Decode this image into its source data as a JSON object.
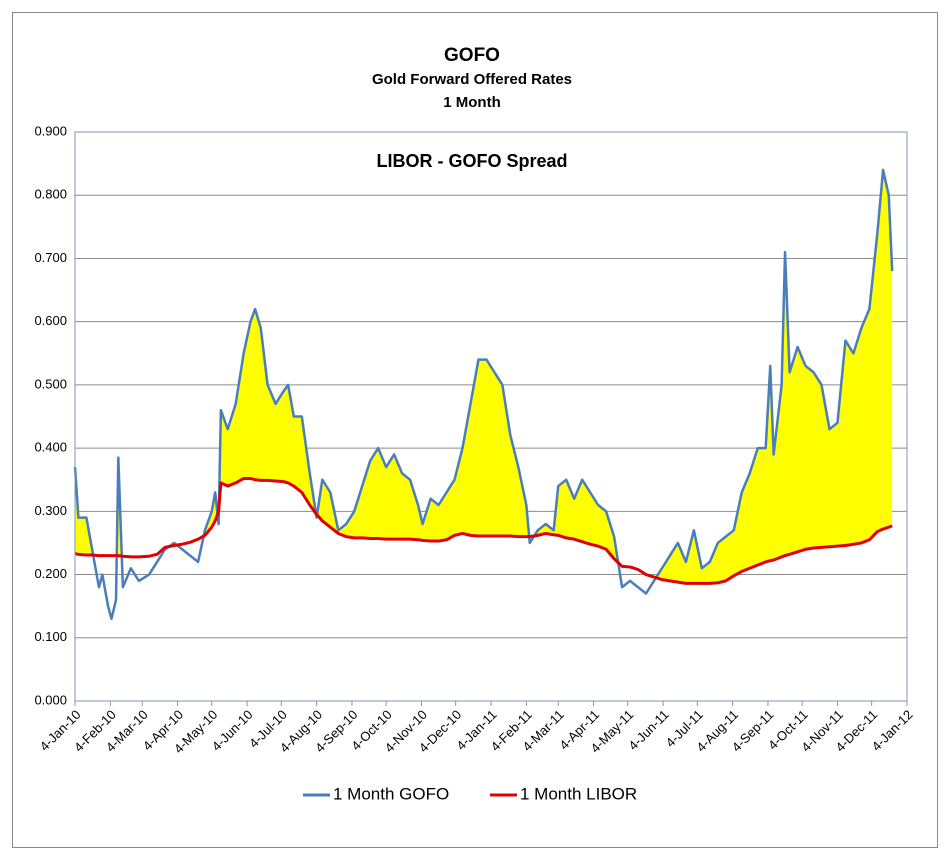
{
  "chart_data": {
    "type": "line",
    "title": "GOFO",
    "subtitle": "Gold Forward Offered Rates",
    "subtitle2": "1 Month",
    "annotation": "LIBOR - GOFO Spread",
    "grid": true,
    "legend": "bottom",
    "fill_between": {
      "color": "#ffff00"
    },
    "x": [
      "2010-01-04",
      "2010-01-07",
      "2010-01-14",
      "2010-01-19",
      "2010-01-25",
      "2010-01-28",
      "2010-02-02",
      "2010-02-05",
      "2010-02-09",
      "2010-02-11",
      "2010-02-15",
      "2010-02-22",
      "2010-03-01",
      "2010-03-10",
      "2010-03-17",
      "2010-03-24",
      "2010-04-01",
      "2010-04-08",
      "2010-04-15",
      "2010-04-22",
      "2010-04-28",
      "2010-05-04",
      "2010-05-07",
      "2010-05-10",
      "2010-05-12",
      "2010-05-18",
      "2010-05-25",
      "2010-06-01",
      "2010-06-07",
      "2010-06-11",
      "2010-06-16",
      "2010-06-22",
      "2010-06-29",
      "2010-07-06",
      "2010-07-10",
      "2010-07-15",
      "2010-07-22",
      "2010-07-29",
      "2010-08-04",
      "2010-08-09",
      "2010-08-16",
      "2010-08-23",
      "2010-08-30",
      "2010-09-06",
      "2010-09-13",
      "2010-09-20",
      "2010-09-27",
      "2010-10-04",
      "2010-10-11",
      "2010-10-18",
      "2010-10-25",
      "2010-11-01",
      "2010-11-05",
      "2010-11-12",
      "2010-11-19",
      "2010-11-26",
      "2010-12-03",
      "2010-12-10",
      "2010-12-17",
      "2010-12-24",
      "2010-12-31",
      "2011-01-07",
      "2011-01-14",
      "2011-01-21",
      "2011-01-28",
      "2011-02-04",
      "2011-02-07",
      "2011-02-14",
      "2011-02-21",
      "2011-02-28",
      "2011-03-04",
      "2011-03-11",
      "2011-03-18",
      "2011-03-25",
      "2011-04-01",
      "2011-04-08",
      "2011-04-15",
      "2011-04-22",
      "2011-04-29",
      "2011-05-06",
      "2011-05-13",
      "2011-05-20",
      "2011-05-27",
      "2011-06-03",
      "2011-06-10",
      "2011-06-17",
      "2011-06-24",
      "2011-07-01",
      "2011-07-08",
      "2011-07-15",
      "2011-07-22",
      "2011-07-29",
      "2011-08-05",
      "2011-08-12",
      "2011-08-19",
      "2011-08-26",
      "2011-09-02",
      "2011-09-06",
      "2011-09-09",
      "2011-09-16",
      "2011-09-19",
      "2011-09-23",
      "2011-09-30",
      "2011-10-07",
      "2011-10-14",
      "2011-10-21",
      "2011-10-28",
      "2011-11-04",
      "2011-11-11",
      "2011-11-18",
      "2011-11-25",
      "2011-12-02",
      "2011-12-09",
      "2011-12-14",
      "2011-12-19",
      "2011-12-22"
    ],
    "series": [
      {
        "name": "1 Month GOFO",
        "color": "#4a7ebb",
        "values": [
          0.37,
          0.29,
          0.29,
          0.24,
          0.18,
          0.2,
          0.15,
          0.13,
          0.16,
          0.385,
          0.18,
          0.21,
          0.19,
          0.2,
          0.22,
          0.24,
          0.25,
          0.24,
          0.23,
          0.22,
          0.27,
          0.3,
          0.33,
          0.28,
          0.46,
          0.43,
          0.47,
          0.55,
          0.6,
          0.62,
          0.59,
          0.5,
          0.47,
          0.49,
          0.5,
          0.45,
          0.45,
          0.36,
          0.29,
          0.35,
          0.33,
          0.27,
          0.28,
          0.3,
          0.34,
          0.38,
          0.4,
          0.37,
          0.39,
          0.36,
          0.35,
          0.31,
          0.28,
          0.32,
          0.31,
          0.33,
          0.35,
          0.4,
          0.47,
          0.54,
          0.54,
          0.52,
          0.5,
          0.42,
          0.37,
          0.31,
          0.25,
          0.27,
          0.28,
          0.27,
          0.34,
          0.35,
          0.32,
          0.35,
          0.33,
          0.31,
          0.3,
          0.26,
          0.18,
          0.19,
          0.18,
          0.17,
          0.19,
          0.21,
          0.23,
          0.25,
          0.22,
          0.27,
          0.21,
          0.22,
          0.25,
          0.26,
          0.27,
          0.33,
          0.36,
          0.4,
          0.4,
          0.53,
          0.39,
          0.5,
          0.71,
          0.52,
          0.56,
          0.53,
          0.52,
          0.5,
          0.43,
          0.44,
          0.57,
          0.55,
          0.59,
          0.62,
          0.74,
          0.84,
          0.8,
          0.68
        ]
      },
      {
        "name": "1 Month LIBOR",
        "color": "#e00000",
        "values": [
          0.233,
          0.232,
          0.231,
          0.231,
          0.23,
          0.23,
          0.23,
          0.23,
          0.23,
          0.23,
          0.229,
          0.228,
          0.228,
          0.229,
          0.232,
          0.243,
          0.246,
          0.248,
          0.251,
          0.256,
          0.262,
          0.275,
          0.285,
          0.3,
          0.345,
          0.34,
          0.345,
          0.352,
          0.352,
          0.35,
          0.349,
          0.349,
          0.348,
          0.347,
          0.345,
          0.34,
          0.33,
          0.31,
          0.295,
          0.285,
          0.275,
          0.265,
          0.26,
          0.258,
          0.258,
          0.257,
          0.257,
          0.256,
          0.256,
          0.256,
          0.256,
          0.255,
          0.254,
          0.253,
          0.253,
          0.255,
          0.262,
          0.265,
          0.262,
          0.261,
          0.261,
          0.261,
          0.261,
          0.261,
          0.26,
          0.26,
          0.26,
          0.262,
          0.265,
          0.263,
          0.262,
          0.258,
          0.256,
          0.252,
          0.248,
          0.245,
          0.24,
          0.225,
          0.213,
          0.212,
          0.208,
          0.2,
          0.196,
          0.192,
          0.19,
          0.188,
          0.186,
          0.186,
          0.186,
          0.186,
          0.187,
          0.19,
          0.198,
          0.205,
          0.21,
          0.215,
          0.22,
          0.222,
          0.223,
          0.228,
          0.23,
          0.232,
          0.236,
          0.24,
          0.242,
          0.243,
          0.244,
          0.245,
          0.246,
          0.248,
          0.25,
          0.255,
          0.268,
          0.272,
          0.275,
          0.277
        ]
      }
    ],
    "xlim": [
      "2010-01-04",
      "2012-01-04"
    ],
    "xticks": [
      {
        "value": "2010-01-04",
        "label": "4-Jan-10"
      },
      {
        "value": "2010-02-04",
        "label": "4-Feb-10"
      },
      {
        "value": "2010-03-04",
        "label": "4-Mar-10"
      },
      {
        "value": "2010-04-04",
        "label": "4-Apr-10"
      },
      {
        "value": "2010-05-04",
        "label": "4-May-10"
      },
      {
        "value": "2010-06-04",
        "label": "4-Jun-10"
      },
      {
        "value": "2010-07-04",
        "label": "4-Jul-10"
      },
      {
        "value": "2010-08-04",
        "label": "4-Aug-10"
      },
      {
        "value": "2010-09-04",
        "label": "4-Sep-10"
      },
      {
        "value": "2010-10-04",
        "label": "4-Oct-10"
      },
      {
        "value": "2010-11-04",
        "label": "4-Nov-10"
      },
      {
        "value": "2010-12-04",
        "label": "4-Dec-10"
      },
      {
        "value": "2011-01-04",
        "label": "4-Jan-11"
      },
      {
        "value": "2011-02-04",
        "label": "4-Feb-11"
      },
      {
        "value": "2011-03-04",
        "label": "4-Mar-11"
      },
      {
        "value": "2011-04-04",
        "label": "4-Apr-11"
      },
      {
        "value": "2011-05-04",
        "label": "4-May-11"
      },
      {
        "value": "2011-06-04",
        "label": "4-Jun-11"
      },
      {
        "value": "2011-07-04",
        "label": "4-Jul-11"
      },
      {
        "value": "2011-08-04",
        "label": "4-Aug-11"
      },
      {
        "value": "2011-09-04",
        "label": "4-Sep-11"
      },
      {
        "value": "2011-10-04",
        "label": "4-Oct-11"
      },
      {
        "value": "2011-11-04",
        "label": "4-Nov-11"
      },
      {
        "value": "2011-12-04",
        "label": "4-Dec-11"
      },
      {
        "value": "2012-01-04",
        "label": "4-Jan-12"
      }
    ],
    "ylim": [
      0,
      0.9
    ],
    "yticks": [
      {
        "value": 0,
        "label": "0.000"
      },
      {
        "value": 0.1,
        "label": "0.100"
      },
      {
        "value": 0.2,
        "label": "0.200"
      },
      {
        "value": 0.3,
        "label": "0.300"
      },
      {
        "value": 0.4,
        "label": "0.400"
      },
      {
        "value": 0.5,
        "label": "0.500"
      },
      {
        "value": 0.6,
        "label": "0.600"
      },
      {
        "value": 0.7,
        "label": "0.700"
      },
      {
        "value": 0.8,
        "label": "0.800"
      },
      {
        "value": 0.9,
        "label": "0.900"
      }
    ]
  }
}
